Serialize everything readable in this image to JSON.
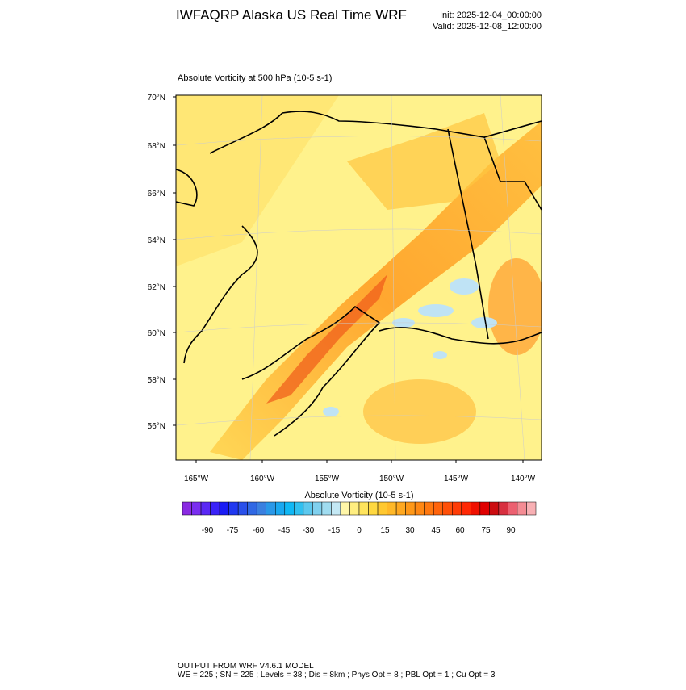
{
  "header": {
    "title": "IWFAQRP Alaska US Real Time WRF",
    "init": "Init: 2025-12-04_00:00:00",
    "valid": "Valid: 2025-12-08_12:00:00"
  },
  "plot": {
    "subtitle": "Absolute Vorticity at 500 hPa   (10-5 s-1)",
    "lat_labels": [
      "70°N",
      "68°N",
      "66°N",
      "64°N",
      "62°N",
      "60°N",
      "58°N",
      "56°N"
    ],
    "lon_labels": [
      "165°W",
      "160°W",
      "155°W",
      "150°W",
      "145°W",
      "140°W"
    ]
  },
  "colorbar": {
    "title": "Absolute Vorticity  (10-5 s-1)",
    "labels": [
      -90,
      -75,
      -60,
      -45,
      -30,
      -15,
      0,
      15,
      30,
      45,
      60,
      75,
      90
    ]
  },
  "footer": {
    "line1": "OUTPUT FROM WRF V4.6.1 MODEL",
    "line2": "WE = 225 ; SN = 225 ; Levels = 38 ; Dis = 8km ; Phys Opt = 8 ; PBL Opt = 1 ; Cu Opt = 3"
  }
}
